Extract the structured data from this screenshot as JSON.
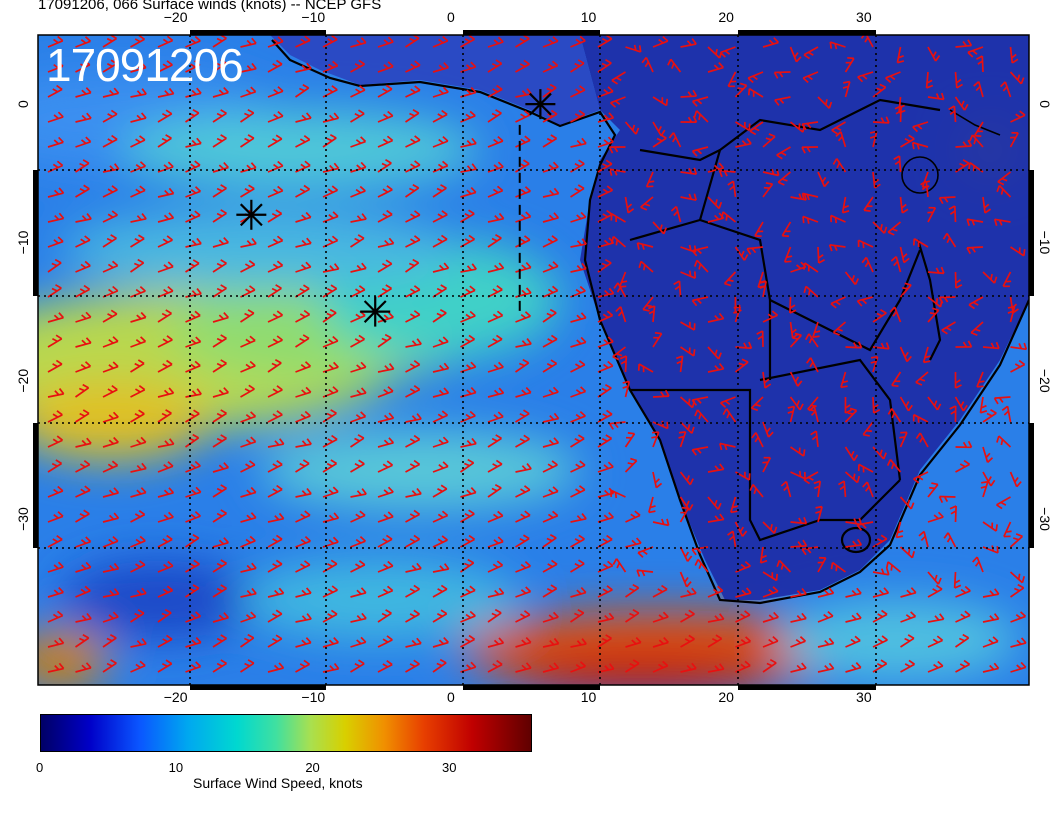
{
  "title": "17091206, 066 Surface winds (knots) -- NCEP GFS",
  "timestamp": "17091206",
  "map": {
    "lon_range": [
      -30,
      42
    ],
    "lat_range": [
      -42,
      5
    ],
    "lon_ticks": [
      "-20",
      "-10",
      "0",
      "10",
      "20",
      "30"
    ],
    "lat_ticks": [
      "0",
      "-10",
      "-20",
      "-30"
    ],
    "grid_lines": true,
    "wind_barb_color": "#e81010",
    "markers": [
      {
        "lon": 6.5,
        "lat": 0.0
      },
      {
        "lon": -14.5,
        "lat": -8.0
      },
      {
        "lon": -5.5,
        "lat": -15.0
      }
    ],
    "dashed_line": {
      "lon": 5.0,
      "lat_from": -1.5,
      "lat_to": -15.0
    }
  },
  "colorbar": {
    "label": "Surface Wind Speed, knots",
    "ticks": [
      "0",
      "10",
      "20",
      "30"
    ],
    "range": [
      0,
      36
    ]
  }
}
